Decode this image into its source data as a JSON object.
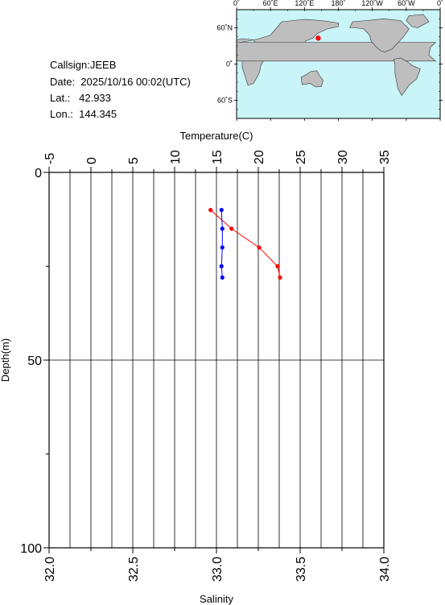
{
  "info": {
    "callsign": "Callsign:JEEB",
    "date": "Date:  2025/10/16 00:02(UTC)",
    "lat": "Lat.:   42.933",
    "lon": "Lon.:  144.345"
  },
  "map": {
    "top_labels": [
      "0˚",
      "60˚E",
      "120˚E",
      "180˚",
      "120˚W",
      "60˚W",
      "0˚"
    ],
    "left_labels": [
      "60˚N",
      "0˚",
      "60˚S"
    ],
    "station": {
      "lat": 42.933,
      "lon": 144.345
    },
    "ocean_color": "#c9f4f8",
    "land_color": "#bebebe",
    "marker_color": "#ff0000"
  },
  "chart_data": {
    "type": "line",
    "title": "",
    "ylabel": "Depth(m)",
    "ylim": [
      0,
      100
    ],
    "y_ticks": [
      "0",
      "50",
      "100"
    ],
    "temperature_axis": {
      "label": "Temperature(C)",
      "range": [
        -5,
        35
      ],
      "ticks": [
        "-5",
        "0",
        "5",
        "10",
        "15",
        "20",
        "25",
        "30",
        "35"
      ]
    },
    "salinity_axis": {
      "label": "Salinity",
      "range": [
        32.0,
        34.0
      ],
      "ticks": [
        "32.0",
        "32.5",
        "33.0",
        "33.5",
        "34.0"
      ]
    },
    "grid": true,
    "series": [
      {
        "axis": "temperature",
        "color": "#ff0000",
        "depth": [
          10,
          15,
          20,
          25,
          28
        ],
        "values": [
          14.3,
          16.8,
          20.1,
          22.3,
          22.6
        ]
      },
      {
        "axis": "salinity",
        "color": "#0000ff",
        "depth": [
          10,
          15,
          20,
          25,
          28
        ],
        "values": [
          33.03,
          33.035,
          33.035,
          33.03,
          33.035
        ]
      }
    ]
  }
}
